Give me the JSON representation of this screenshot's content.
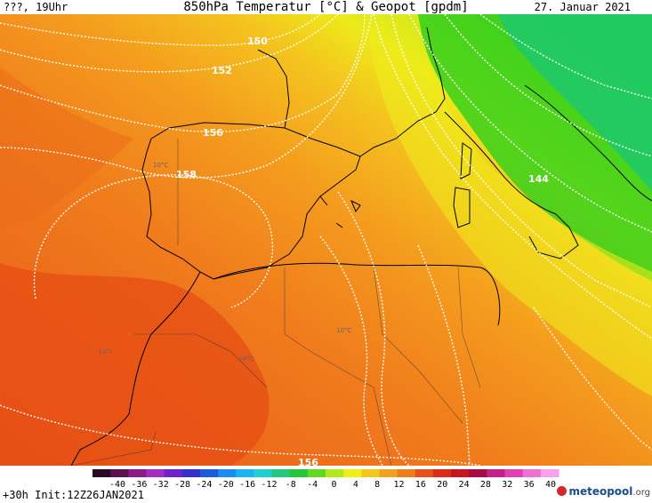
{
  "header": {
    "left": "???, 19Uhr",
    "title": "850hPa Temperatur [°C] & Geopot [gpdm]",
    "date": "27. Januar 2021"
  },
  "footer": {
    "run_info": "+30h  Init:12Z26JAN2021",
    "logo_main": "meteopool",
    "logo_tld": ".org"
  },
  "colorbar": {
    "labels": [
      "-40",
      "-36",
      "-32",
      "-28",
      "-24",
      "-20",
      "-16",
      "-12",
      "-8",
      "-4",
      "0",
      "4",
      "8",
      "12",
      "16",
      "20",
      "24",
      "28",
      "32",
      "36",
      "40"
    ],
    "colors": [
      "#2a0a24",
      "#5a1050",
      "#8a1a86",
      "#a62ac0",
      "#7020c8",
      "#3430d0",
      "#1c5cdc",
      "#1c8cec",
      "#1cb4f0",
      "#20d0d0",
      "#20c880",
      "#22c83a",
      "#60d820",
      "#b0e818",
      "#eeee18",
      "#f4c818",
      "#f2a11c",
      "#ee7c1a",
      "#e8501a",
      "#de2a1a",
      "#c8141e",
      "#a80a48",
      "#c81e88",
      "#e040b0",
      "#f070d0",
      "#f8a0e8"
    ]
  },
  "map": {
    "contour_labels": [
      "150",
      "152",
      "156",
      "158",
      "144",
      "156"
    ],
    "temp_labels": [
      "10°C",
      "10°C",
      "14°C",
      "14°C"
    ]
  }
}
